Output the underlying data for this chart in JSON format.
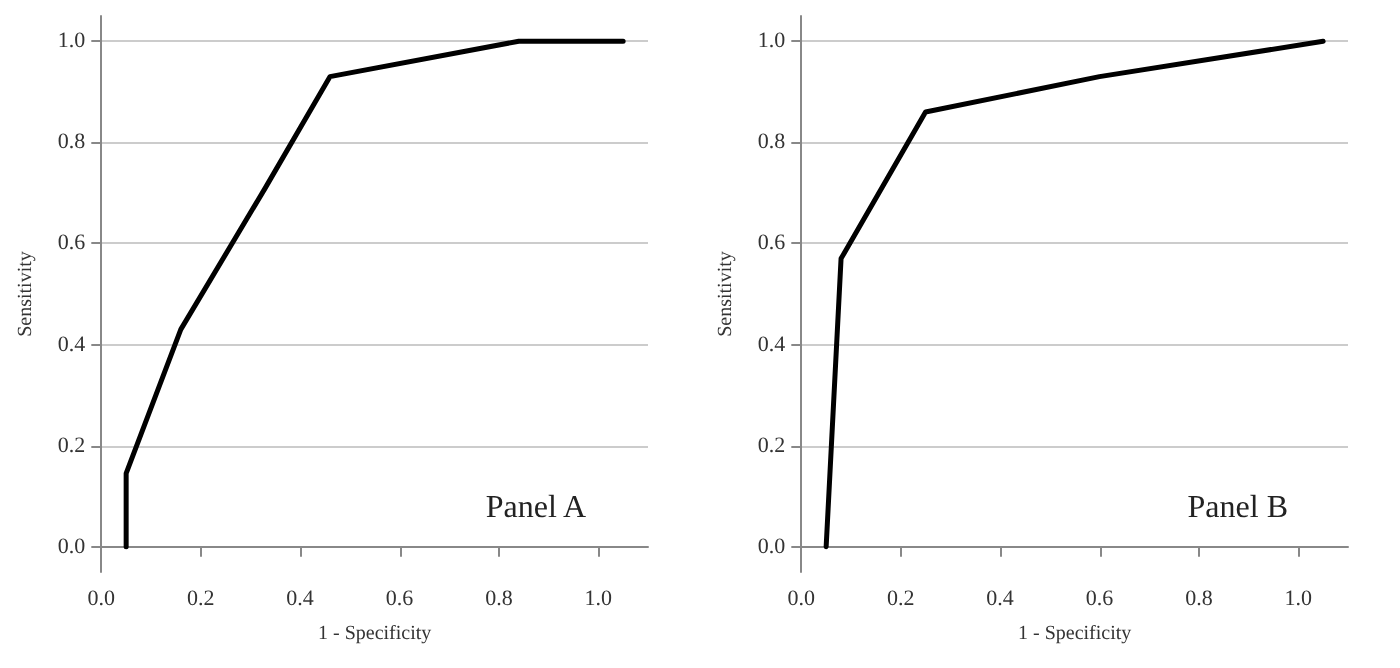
{
  "chart_data": [
    {
      "type": "line",
      "xlabel": "1 - Specificity",
      "ylabel": "Sensitivity",
      "annotations": [
        "Panel A"
      ],
      "xlim": [
        0,
        1.1
      ],
      "ylim": [
        -0.05,
        1.05
      ],
      "xticks": [
        {
          "value": 0,
          "label": "0.0"
        },
        {
          "value": 0.2,
          "label": "0.2"
        },
        {
          "value": 0.4,
          "label": "0.4"
        },
        {
          "value": 0.6,
          "label": "0.6"
        },
        {
          "value": 0.8,
          "label": "0.8"
        },
        {
          "value": 1,
          "label": "1.0"
        }
      ],
      "yticks": [
        {
          "value": 0,
          "label": "0.0"
        },
        {
          "value": 0.2,
          "label": "0.2"
        },
        {
          "value": 0.4,
          "label": "0.4"
        },
        {
          "value": 0.6,
          "label": "0.6"
        },
        {
          "value": 0.8,
          "label": "0.8"
        },
        {
          "value": 1,
          "label": "1.0"
        }
      ],
      "grid": "y",
      "marker": "none",
      "line_style": "solid",
      "series": [
        {
          "color": "#000000",
          "x": [
            0.05,
            0.05,
            0.16,
            0.33,
            0.46,
            0.84,
            1.05
          ],
          "values": [
            0,
            0.145,
            0.43,
            0.71,
            0.93,
            1,
            1
          ]
        }
      ]
    },
    {
      "type": "line",
      "xlabel": "1 - Specificity",
      "ylabel": "Sensitivity",
      "annotations": [
        "Panel B"
      ],
      "xlim": [
        0,
        1.1
      ],
      "ylim": [
        -0.05,
        1.05
      ],
      "xticks": [
        {
          "value": 0,
          "label": "0.0"
        },
        {
          "value": 0.2,
          "label": "0.2"
        },
        {
          "value": 0.4,
          "label": "0.4"
        },
        {
          "value": 0.6,
          "label": "0.6"
        },
        {
          "value": 0.8,
          "label": "0.8"
        },
        {
          "value": 1,
          "label": "1.0"
        }
      ],
      "yticks": [
        {
          "value": 0,
          "label": "0.0"
        },
        {
          "value": 0.2,
          "label": "0.2"
        },
        {
          "value": 0.4,
          "label": "0.4"
        },
        {
          "value": 0.6,
          "label": "0.6"
        },
        {
          "value": 0.8,
          "label": "0.8"
        },
        {
          "value": 1,
          "label": "1.0"
        }
      ],
      "grid": "y",
      "marker": "none",
      "line_style": "solid",
      "series": [
        {
          "color": "#000000",
          "x": [
            0.05,
            0.08,
            0.25,
            0.6,
            1.05
          ],
          "values": [
            0,
            0.57,
            0.86,
            0.93,
            1
          ]
        }
      ]
    }
  ]
}
